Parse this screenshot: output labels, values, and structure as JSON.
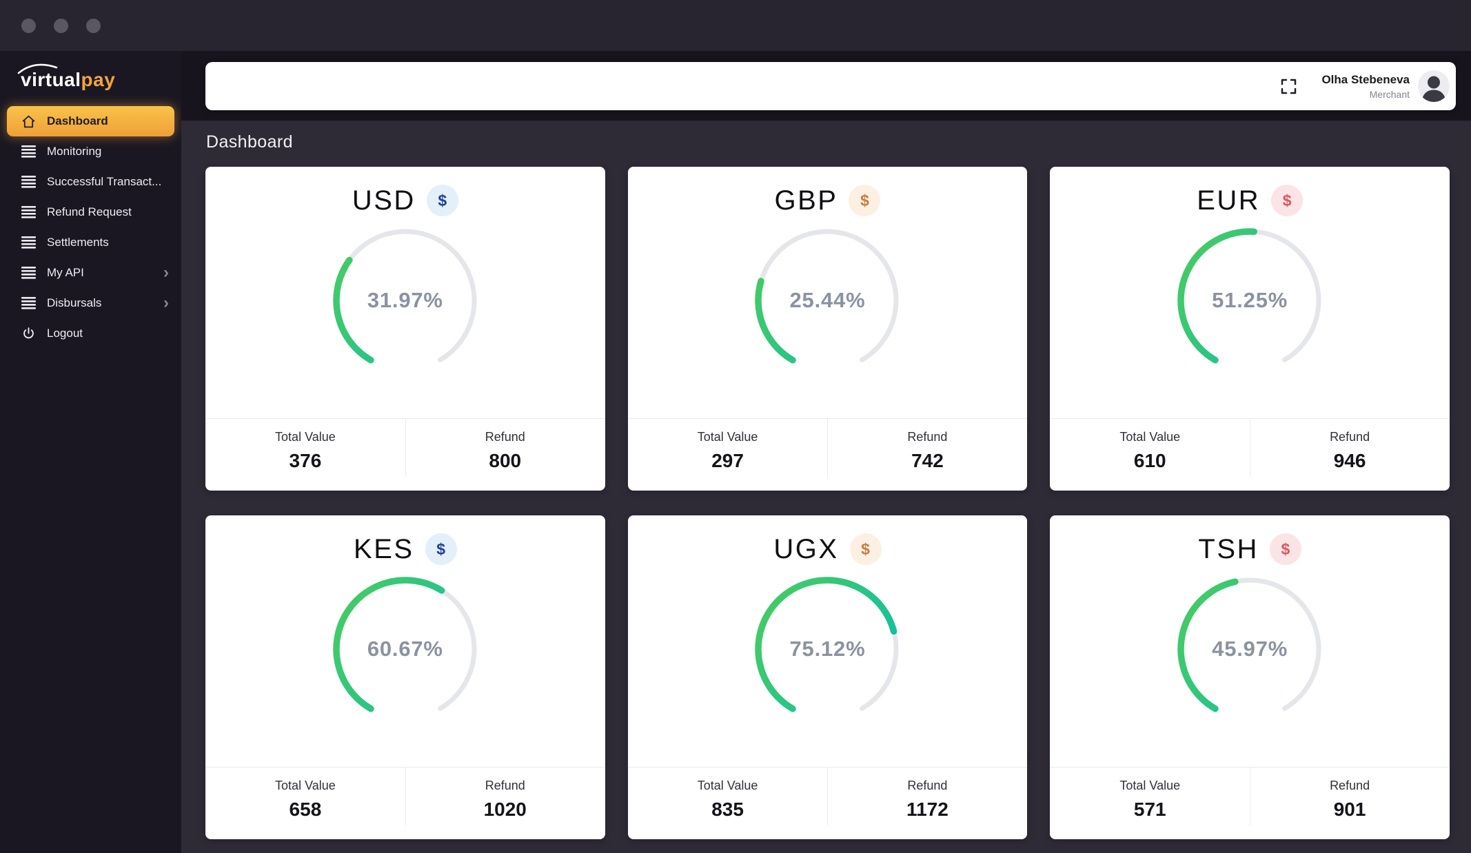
{
  "titlebar": {
    "window_controls": [
      "window-dot-1",
      "window-dot-2",
      "window-dot-3"
    ]
  },
  "brand": {
    "primary": "virtual",
    "accent": "pay"
  },
  "sidebar": {
    "items": [
      {
        "label": "Dashboard",
        "icon": "home",
        "active": true,
        "has_chevron": false
      },
      {
        "label": "Monitoring",
        "icon": "menu",
        "active": false,
        "has_chevron": false
      },
      {
        "label": "Successful Transact...",
        "icon": "menu",
        "active": false,
        "has_chevron": false
      },
      {
        "label": "Refund Request",
        "icon": "menu",
        "active": false,
        "has_chevron": false
      },
      {
        "label": "Settlements",
        "icon": "menu",
        "active": false,
        "has_chevron": false
      },
      {
        "label": "My API",
        "icon": "menu",
        "active": false,
        "has_chevron": true
      },
      {
        "label": "Disbursals",
        "icon": "menu",
        "active": false,
        "has_chevron": true
      },
      {
        "label": "Logout",
        "icon": "power",
        "active": false,
        "has_chevron": false
      }
    ],
    "chevron_glyph": "›"
  },
  "header": {
    "search_value": "",
    "user": {
      "name": "Olha Stebeneva",
      "role": "Merchant"
    }
  },
  "page": {
    "title": "Dashboard"
  },
  "card_labels": {
    "total_value": "Total Value",
    "refund": "Refund",
    "currency_symbol": "$"
  },
  "chart_data": [
    {
      "type": "radial-gauge",
      "title": "USD",
      "percent": 31.97,
      "total_value": "376",
      "refund": "800",
      "badge_theme": "blue"
    },
    {
      "type": "radial-gauge",
      "title": "GBP",
      "percent": 25.44,
      "total_value": "297",
      "refund": "742",
      "badge_theme": "orange"
    },
    {
      "type": "radial-gauge",
      "title": "EUR",
      "percent": 51.25,
      "total_value": "610",
      "refund": "946",
      "badge_theme": "red"
    },
    {
      "type": "radial-gauge",
      "title": "KES",
      "percent": 60.67,
      "total_value": "658",
      "refund": "1020",
      "badge_theme": "blue"
    },
    {
      "type": "radial-gauge",
      "title": "UGX",
      "percent": 75.12,
      "total_value": "835",
      "refund": "1172",
      "badge_theme": "orange"
    },
    {
      "type": "radial-gauge",
      "title": "TSH",
      "percent": 45.97,
      "total_value": "571",
      "refund": "901",
      "badge_theme": "red"
    }
  ],
  "gauge": {
    "sweep_degrees": 300,
    "start_rotation_degrees": 120,
    "track_color": "#e4e6ea",
    "gradient_top": "#12bea2",
    "gradient_bottom": "#42ca69",
    "percent_suffix": "%"
  },
  "colors": {
    "css_vars": {
      "titlebar-bg": "#282530",
      "sidebar-bg": "#1a1722",
      "topband-bg": "#17141d",
      "content-bg": "#2e2b37",
      "dot-color": "#5a5663",
      "logo-accent": "#f2a43c",
      "accent-top": "#f9c349",
      "accent-bottom": "#ef9f38",
      "pct-color": "#8b92a0",
      "divider": "#e9ebef"
    },
    "badge_themes": {
      "blue": {
        "bg": "#e3f0fa",
        "fg": "#20409a"
      },
      "orange": {
        "bg": "#fcf0e3",
        "fg": "#c87c42"
      },
      "red": {
        "bg": "#fbe4e6",
        "fg": "#d9595f"
      }
    }
  }
}
